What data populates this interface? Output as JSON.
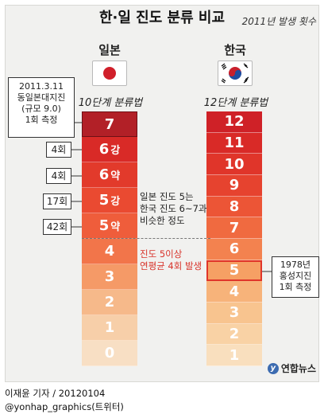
{
  "title": "한·일 진도 분류 비교",
  "subtitle": "2011년 발생 횟수",
  "japan": {
    "header": "일본",
    "system": "10단계 분류법",
    "flag_icon": "japan-flag-icon",
    "scale": [
      {
        "num": "7",
        "suffix": "",
        "color": "#b22027"
      },
      {
        "num": "6",
        "suffix": "강",
        "color": "#d92a27"
      },
      {
        "num": "6",
        "suffix": "약",
        "color": "#e23a2b"
      },
      {
        "num": "5",
        "suffix": "강",
        "color": "#ea4a31"
      },
      {
        "num": "5",
        "suffix": "약",
        "color": "#ef5d3b"
      },
      {
        "num": "4",
        "suffix": "",
        "color": "#f2754a"
      },
      {
        "num": "3",
        "suffix": "",
        "color": "#f59a67"
      },
      {
        "num": "2",
        "suffix": "",
        "color": "#f6b98a"
      },
      {
        "num": "1",
        "suffix": "",
        "color": "#f7cfa9"
      },
      {
        "num": "0",
        "suffix": "",
        "color": "#f8dfc4"
      }
    ],
    "counts": [
      "4회",
      "4회",
      "17회",
      "42회"
    ],
    "callout": [
      "2011.3.11",
      "동일본대지진",
      "(규모 9.0)",
      "1회 측정"
    ]
  },
  "korea": {
    "header": "한국",
    "system": "12단계 분류법",
    "flag_icon": "korea-flag-icon",
    "scale": [
      {
        "num": "12",
        "color": "#cf2127"
      },
      {
        "num": "11",
        "color": "#d92a27"
      },
      {
        "num": "10",
        "color": "#e0352a"
      },
      {
        "num": "9",
        "color": "#e6432f"
      },
      {
        "num": "8",
        "color": "#ec5536"
      },
      {
        "num": "7",
        "color": "#f06a40"
      },
      {
        "num": "6",
        "color": "#f3824f"
      },
      {
        "num": "5",
        "color": "#f6a064"
      },
      {
        "num": "4",
        "color": "#f7b37a"
      },
      {
        "num": "3",
        "color": "#f8c48f"
      },
      {
        "num": "2",
        "color": "#f9d2a5"
      },
      {
        "num": "1",
        "color": "#f9dfbe"
      }
    ],
    "callout": [
      "1978년",
      "홍성지진",
      "1회 측정"
    ]
  },
  "notes": {
    "comparison": [
      "일본 진도 5는",
      "한국 진도 6~7과",
      "비슷한 정도"
    ],
    "frequency": [
      "진도 5이상",
      "연평균 4회 발생"
    ]
  },
  "footer": {
    "author": "이재윤 기자 / 20120104",
    "social": "@yonhap_graphics(트위터)",
    "logo_text": "연합뉴스",
    "logo_mark": "y"
  }
}
